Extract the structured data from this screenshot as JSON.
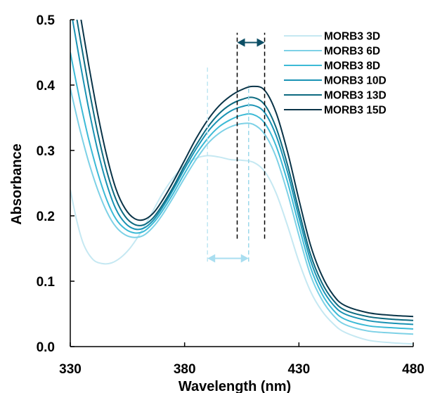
{
  "chart_data": {
    "type": "line",
    "title": "",
    "xlabel": "Wavelength (nm)",
    "ylabel": "Absorbance",
    "xlim": [
      330,
      480
    ],
    "ylim": [
      0,
      0.5
    ],
    "xticks": [
      330,
      380,
      430,
      480
    ],
    "yticks": [
      "0.0",
      "0.1",
      "0.2",
      "0.3",
      "0.4",
      "0.5"
    ],
    "grid": false,
    "legend_position": "top-right",
    "series": [
      {
        "name": "MORB3 3D",
        "color": "#c5e8f2",
        "x": [
          330,
          333,
          336,
          340,
          344,
          348,
          352,
          356,
          360,
          365,
          370,
          375,
          380,
          385,
          390,
          395,
          400,
          405,
          410,
          415,
          420,
          425,
          430,
          435,
          440,
          445,
          450,
          460,
          470,
          480
        ],
        "y": [
          0.24,
          0.19,
          0.155,
          0.133,
          0.127,
          0.128,
          0.136,
          0.15,
          0.17,
          0.2,
          0.232,
          0.258,
          0.277,
          0.288,
          0.292,
          0.29,
          0.286,
          0.285,
          0.282,
          0.268,
          0.235,
          0.185,
          0.13,
          0.085,
          0.055,
          0.035,
          0.022,
          0.01,
          0.006,
          0.004
        ]
      },
      {
        "name": "MORB3 6D",
        "color": "#7dd1e6",
        "x": [
          330,
          334,
          338,
          342,
          346,
          350,
          354,
          358,
          362,
          366,
          370,
          375,
          380,
          385,
          390,
          395,
          400,
          405,
          410,
          415,
          420,
          425,
          430,
          435,
          440,
          445,
          450,
          460,
          470,
          480
        ],
        "y": [
          0.395,
          0.335,
          0.283,
          0.24,
          0.206,
          0.183,
          0.171,
          0.167,
          0.17,
          0.182,
          0.2,
          0.228,
          0.258,
          0.286,
          0.31,
          0.326,
          0.336,
          0.341,
          0.34,
          0.325,
          0.29,
          0.235,
          0.17,
          0.11,
          0.072,
          0.048,
          0.034,
          0.024,
          0.021,
          0.019
        ]
      },
      {
        "name": "MORB3 8D",
        "color": "#3cbad6",
        "x": [
          330,
          334,
          338,
          342,
          346,
          350,
          354,
          358,
          362,
          366,
          370,
          375,
          380,
          385,
          390,
          395,
          400,
          405,
          410,
          415,
          420,
          425,
          430,
          435,
          440,
          445,
          450,
          460,
          470,
          480
        ],
        "y": [
          0.45,
          0.38,
          0.318,
          0.266,
          0.224,
          0.195,
          0.18,
          0.174,
          0.176,
          0.188,
          0.206,
          0.234,
          0.265,
          0.294,
          0.318,
          0.336,
          0.347,
          0.354,
          0.355,
          0.342,
          0.307,
          0.252,
          0.185,
          0.122,
          0.081,
          0.056,
          0.042,
          0.032,
          0.029,
          0.027
        ]
      },
      {
        "name": "MORB3 10D",
        "color": "#1a93b4",
        "x": [
          330,
          334,
          338,
          342,
          346,
          350,
          354,
          358,
          362,
          366,
          370,
          375,
          380,
          385,
          390,
          395,
          400,
          405,
          410,
          415,
          420,
          425,
          430,
          435,
          440,
          445,
          450,
          460,
          470,
          480
        ],
        "y": [
          0.52,
          0.44,
          0.365,
          0.3,
          0.248,
          0.21,
          0.189,
          0.18,
          0.181,
          0.192,
          0.211,
          0.24,
          0.272,
          0.302,
          0.328,
          0.347,
          0.36,
          0.367,
          0.369,
          0.358,
          0.323,
          0.267,
          0.198,
          0.133,
          0.09,
          0.064,
          0.05,
          0.04,
          0.036,
          0.034
        ]
      },
      {
        "name": "MORB3 13D",
        "color": "#0d6a80",
        "x": [
          330,
          334,
          338,
          342,
          346,
          350,
          354,
          358,
          362,
          366,
          370,
          375,
          380,
          385,
          390,
          395,
          400,
          405,
          410,
          415,
          420,
          425,
          430,
          435,
          440,
          445,
          450,
          460,
          470,
          480
        ],
        "y": [
          0.56,
          0.478,
          0.398,
          0.327,
          0.268,
          0.225,
          0.199,
          0.187,
          0.186,
          0.196,
          0.215,
          0.244,
          0.277,
          0.308,
          0.335,
          0.356,
          0.37,
          0.378,
          0.381,
          0.37,
          0.335,
          0.278,
          0.208,
          0.142,
          0.098,
          0.071,
          0.056,
          0.046,
          0.042,
          0.04
        ]
      },
      {
        "name": "MORB3 15D",
        "color": "#0a3448",
        "x": [
          330,
          334,
          338,
          342,
          346,
          350,
          354,
          358,
          362,
          366,
          370,
          375,
          380,
          385,
          390,
          395,
          400,
          405,
          410,
          415,
          420,
          425,
          430,
          435,
          440,
          445,
          450,
          460,
          470,
          480
        ],
        "y": [
          0.6,
          0.515,
          0.432,
          0.356,
          0.291,
          0.241,
          0.211,
          0.196,
          0.194,
          0.203,
          0.222,
          0.252,
          0.285,
          0.318,
          0.346,
          0.368,
          0.383,
          0.393,
          0.398,
          0.392,
          0.358,
          0.298,
          0.225,
          0.156,
          0.109,
          0.079,
          0.063,
          0.052,
          0.048,
          0.046
        ]
      }
    ],
    "annotations": [
      {
        "type": "vline",
        "x": 390,
        "y": [
          0.13,
          0.43
        ],
        "color": "#bfe6f2"
      },
      {
        "type": "vline",
        "x": 408,
        "y": [
          0.13,
          0.4
        ],
        "color": "#9bd8ea"
      },
      {
        "type": "double-arrow",
        "x": [
          390,
          408
        ],
        "y": 0.135,
        "color": "#a9def0"
      },
      {
        "type": "vline",
        "x": 403,
        "y": [
          0.165,
          0.48
        ],
        "color": "#000000"
      },
      {
        "type": "vline",
        "x": 415,
        "y": [
          0.165,
          0.48
        ],
        "color": "#000000"
      },
      {
        "type": "double-arrow",
        "x": [
          403,
          415
        ],
        "y": 0.465,
        "color": "#0d4f66"
      }
    ]
  }
}
